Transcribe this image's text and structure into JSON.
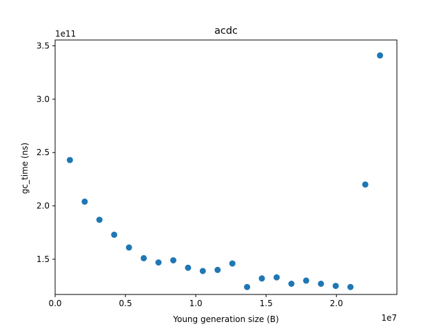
{
  "chart_data": {
    "type": "scatter",
    "title": "acdc",
    "xlabel": "Young generation size (B)",
    "ylabel": "gc_time (ns)",
    "x_offset_label": "1e7",
    "y_offset_label": "1e11",
    "xlim": [
      0,
      24300000
    ],
    "ylim": [
      117000000000.0,
      355500000000.0
    ],
    "x_ticks": [
      {
        "value": 0,
        "label": "0.0"
      },
      {
        "value": 5000000,
        "label": "0.5"
      },
      {
        "value": 10000000,
        "label": "1.0"
      },
      {
        "value": 15000000,
        "label": "1.5"
      },
      {
        "value": 20000000,
        "label": "2.0"
      }
    ],
    "y_ticks": [
      {
        "value": 150000000000.0,
        "label": "1.5"
      },
      {
        "value": 200000000000.0,
        "label": "2.0"
      },
      {
        "value": 250000000000.0,
        "label": "2.5"
      },
      {
        "value": 300000000000.0,
        "label": "3.0"
      },
      {
        "value": 350000000000.0,
        "label": "3.5"
      }
    ],
    "marker_color": "#1f77b4",
    "grid": false,
    "legend": "none",
    "points": [
      {
        "x": 1050000,
        "y": 243000000000.0
      },
      {
        "x": 2100000,
        "y": 204000000000.0
      },
      {
        "x": 3150000,
        "y": 187000000000.0
      },
      {
        "x": 4200000,
        "y": 173000000000.0
      },
      {
        "x": 5250000,
        "y": 161000000000.0
      },
      {
        "x": 6300000,
        "y": 151000000000.0
      },
      {
        "x": 7350000,
        "y": 147000000000.0
      },
      {
        "x": 8400000,
        "y": 149000000000.0
      },
      {
        "x": 9450000,
        "y": 142000000000.0
      },
      {
        "x": 10500000,
        "y": 139000000000.0
      },
      {
        "x": 11550000,
        "y": 140000000000.0
      },
      {
        "x": 12600000,
        "y": 146000000000.0
      },
      {
        "x": 13650000,
        "y": 124000000000.0
      },
      {
        "x": 14700000,
        "y": 132000000000.0
      },
      {
        "x": 15750000,
        "y": 133000000000.0
      },
      {
        "x": 16800000,
        "y": 127000000000.0
      },
      {
        "x": 17850000,
        "y": 130000000000.0
      },
      {
        "x": 18900000,
        "y": 127000000000.0
      },
      {
        "x": 19950000,
        "y": 125000000000.0
      },
      {
        "x": 21000000,
        "y": 124000000000.0
      },
      {
        "x": 22050000,
        "y": 220000000000.0
      },
      {
        "x": 23100000,
        "y": 341000000000.0
      }
    ]
  }
}
